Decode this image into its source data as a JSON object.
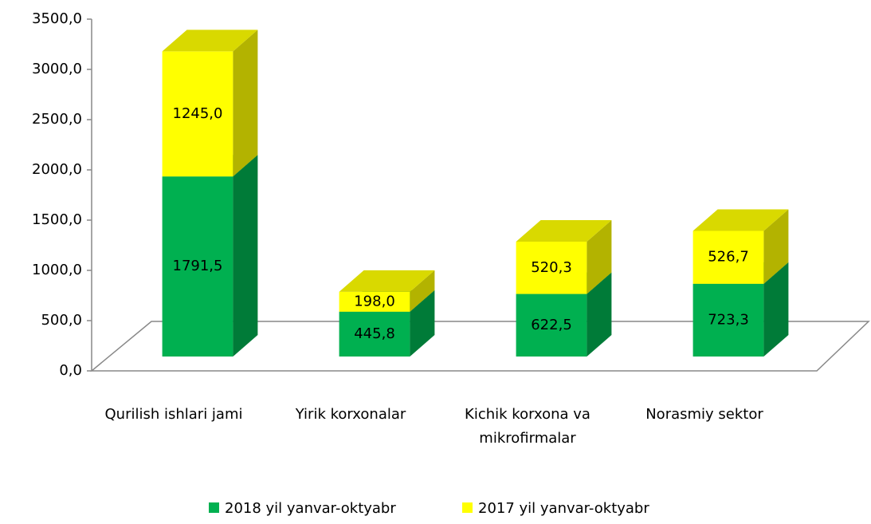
{
  "chart_data": {
    "type": "bar3d_stacked",
    "categories": [
      "Qurilish ishlari jami",
      "Yirik korxonalar",
      "Kichik korxona va mikrofirmalar",
      "Norasmiy sektor"
    ],
    "series": [
      {
        "name": "2018 yil yanvar-oktyabr",
        "color": "#00b050",
        "values": [
          1791.5,
          445.8,
          622.5,
          723.3
        ],
        "value_labels": [
          "1791,5",
          "445,8",
          "622,5",
          "723,3"
        ]
      },
      {
        "name": "2017 yil yanvar-oktyabr",
        "color": "#ffff00",
        "values": [
          1245.0,
          198.0,
          520.3,
          526.7
        ],
        "value_labels": [
          "1245,0",
          "198,0",
          "520,3",
          "526,7"
        ]
      }
    ],
    "ylim": [
      0,
      3500
    ],
    "yticks": [
      {
        "value": 0,
        "label": "0,0"
      },
      {
        "value": 500,
        "label": "500,0"
      },
      {
        "value": 1000,
        "label": "1000,0"
      },
      {
        "value": 1500,
        "label": "1500,0"
      },
      {
        "value": 2000,
        "label": "2000,0"
      },
      {
        "value": 2500,
        "label": "2500,0"
      },
      {
        "value": 3000,
        "label": "3000,0"
      },
      {
        "value": 3500,
        "label": "3500,0"
      }
    ],
    "grid": false,
    "legend": "bottom"
  }
}
